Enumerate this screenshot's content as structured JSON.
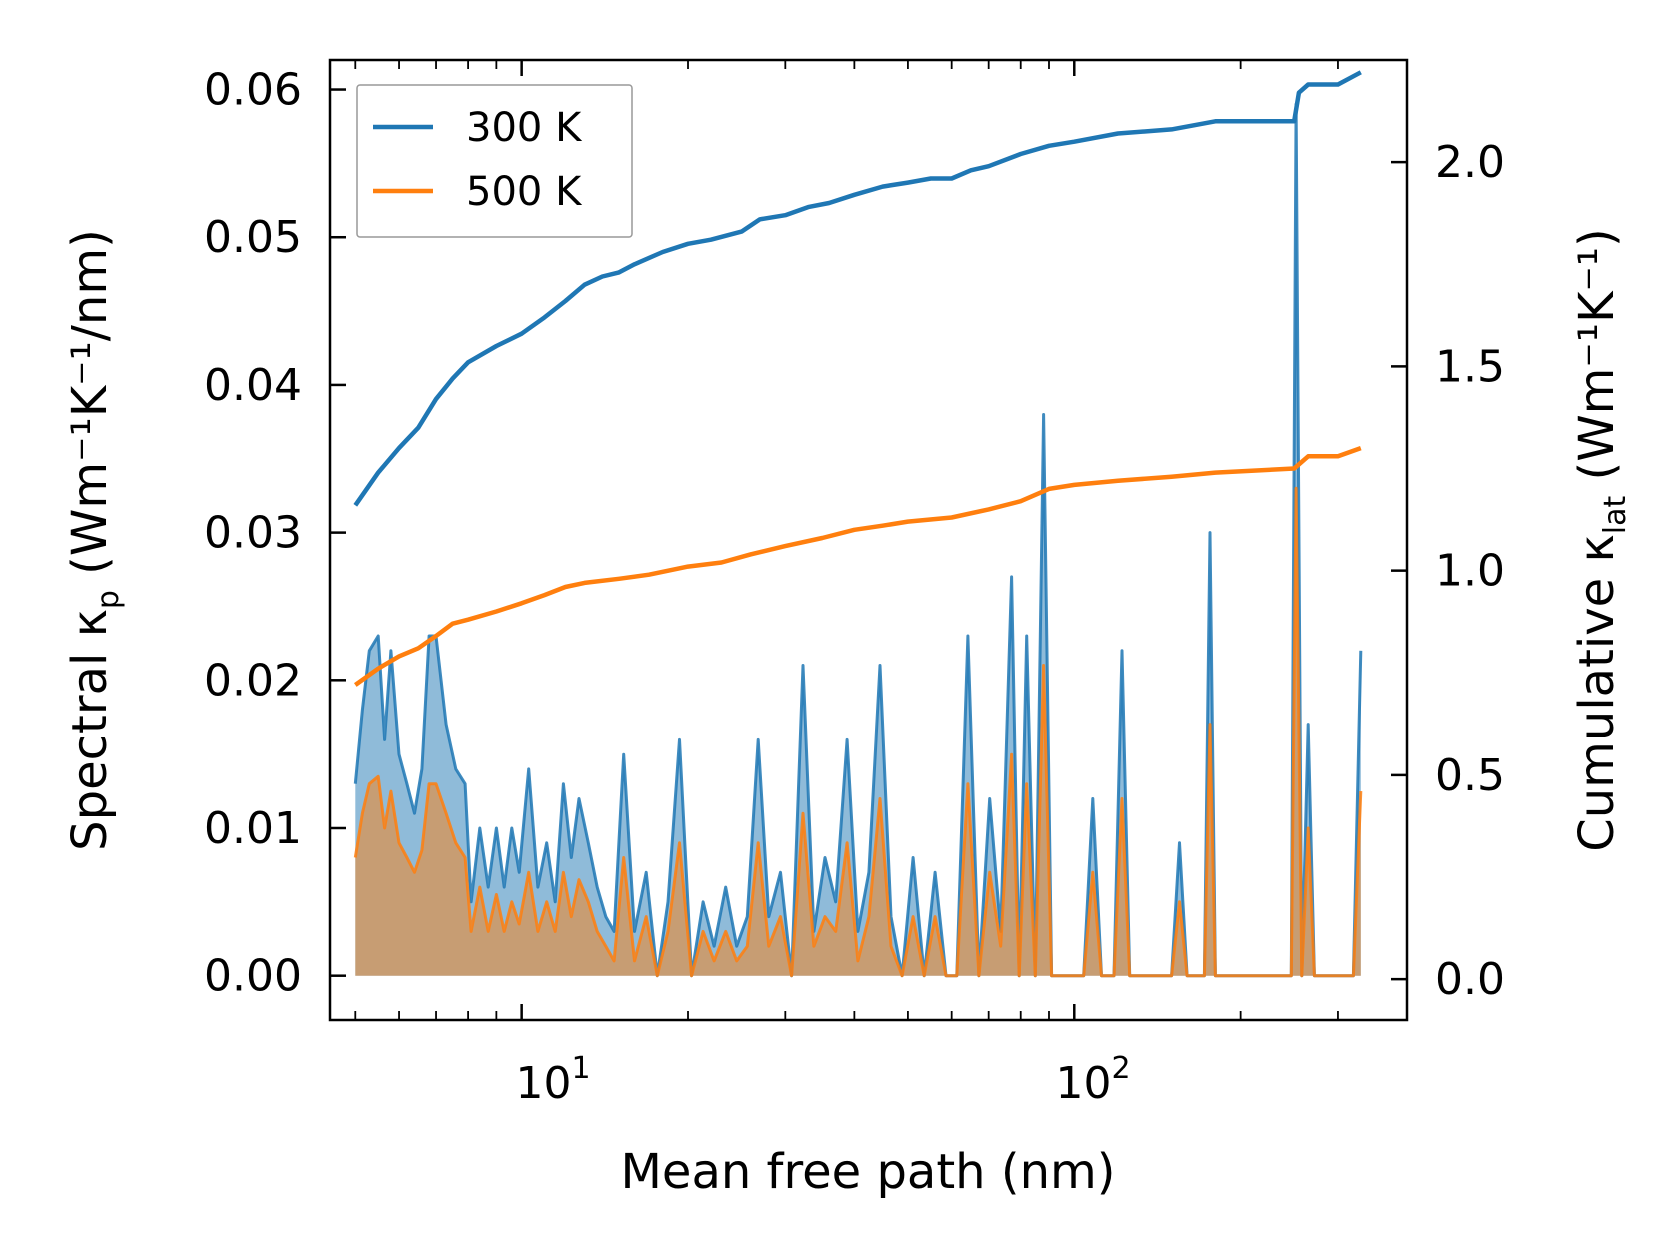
{
  "chart_data": {
    "type": "line",
    "title": "",
    "xlabel": "Mean free path (nm)",
    "ylabel_left": {
      "prefix": "Spectral κ",
      "sub": "p",
      "suffix": " (Wm⁻¹K⁻¹/nm)"
    },
    "ylabel_right": {
      "prefix": "Cumulative κ",
      "sub": "lat",
      "suffix": " (Wm⁻¹K⁻¹)"
    },
    "xscale": "log",
    "xlim": [
      4.5,
      400
    ],
    "ylim_left": [
      -0.003,
      0.062
    ],
    "ylim_right": [
      -0.1,
      2.25
    ],
    "x_ticks": [
      {
        "value": 10,
        "base": "10",
        "exp": "1"
      },
      {
        "value": 100,
        "base": "10",
        "exp": "2"
      }
    ],
    "y_ticks_left": [
      "0.00",
      "0.01",
      "0.02",
      "0.03",
      "0.04",
      "0.05",
      "0.06"
    ],
    "y_ticks_right": [
      "0.0",
      "0.5",
      "1.0",
      "1.5",
      "2.0"
    ],
    "legend": {
      "position": "top-left",
      "entries": [
        "300 K",
        "500 K"
      ]
    },
    "colors": {
      "300 K": "#1f77b4",
      "500 K": "#ff7f0e"
    },
    "spectral_series": [
      {
        "name": "300 K",
        "points": [
          [
            5.0,
            0.013
          ],
          [
            5.15,
            0.018
          ],
          [
            5.3,
            0.022
          ],
          [
            5.5,
            0.023
          ],
          [
            5.65,
            0.016
          ],
          [
            5.8,
            0.022
          ],
          [
            6.0,
            0.015
          ],
          [
            6.2,
            0.013
          ],
          [
            6.4,
            0.011
          ],
          [
            6.6,
            0.014
          ],
          [
            6.8,
            0.023
          ],
          [
            7.0,
            0.023
          ],
          [
            7.3,
            0.017
          ],
          [
            7.6,
            0.014
          ],
          [
            7.9,
            0.013
          ],
          [
            8.1,
            0.005
          ],
          [
            8.4,
            0.01
          ],
          [
            8.7,
            0.006
          ],
          [
            9.0,
            0.01
          ],
          [
            9.3,
            0.006
          ],
          [
            9.6,
            0.01
          ],
          [
            9.9,
            0.007
          ],
          [
            10.3,
            0.014
          ],
          [
            10.7,
            0.006
          ],
          [
            11.1,
            0.009
          ],
          [
            11.5,
            0.005
          ],
          [
            11.9,
            0.013
          ],
          [
            12.3,
            0.008
          ],
          [
            12.7,
            0.012
          ],
          [
            13.2,
            0.009
          ],
          [
            13.7,
            0.006
          ],
          [
            14.2,
            0.004
          ],
          [
            14.7,
            0.003
          ],
          [
            15.3,
            0.015
          ],
          [
            16.0,
            0.003
          ],
          [
            16.8,
            0.007
          ],
          [
            17.6,
            0.0
          ],
          [
            18.4,
            0.005
          ],
          [
            19.3,
            0.016
          ],
          [
            20.3,
            0.0
          ],
          [
            21.3,
            0.005
          ],
          [
            22.3,
            0.002
          ],
          [
            23.4,
            0.006
          ],
          [
            24.5,
            0.002
          ],
          [
            25.6,
            0.004
          ],
          [
            26.8,
            0.016
          ],
          [
            28.0,
            0.004
          ],
          [
            29.4,
            0.007
          ],
          [
            30.8,
            0.0
          ],
          [
            32.3,
            0.021
          ],
          [
            33.8,
            0.003
          ],
          [
            35.4,
            0.008
          ],
          [
            37.0,
            0.005
          ],
          [
            38.8,
            0.016
          ],
          [
            40.6,
            0.003
          ],
          [
            42.5,
            0.007
          ],
          [
            44.5,
            0.021
          ],
          [
            46.6,
            0.004
          ],
          [
            48.8,
            0.0
          ],
          [
            51.1,
            0.008
          ],
          [
            53.5,
            0.0
          ],
          [
            56.0,
            0.007
          ],
          [
            58.6,
            0.0
          ],
          [
            61.3,
            0.0
          ],
          [
            64.2,
            0.023
          ],
          [
            67.2,
            0.0
          ],
          [
            70.3,
            0.012
          ],
          [
            73.6,
            0.003
          ],
          [
            77.0,
            0.027
          ],
          [
            79.5,
            0.0
          ],
          [
            82.0,
            0.023
          ],
          [
            85.0,
            0.0
          ],
          [
            88.0,
            0.038
          ],
          [
            91.0,
            0.0
          ],
          [
            95.0,
            0.0
          ],
          [
            104.0,
            0.0
          ],
          [
            108.0,
            0.012
          ],
          [
            112.0,
            0.0
          ],
          [
            118.0,
            0.0
          ],
          [
            122.0,
            0.022
          ],
          [
            126.0,
            0.0
          ],
          [
            150.0,
            0.0
          ],
          [
            155.0,
            0.009
          ],
          [
            160.0,
            0.0
          ],
          [
            172.0,
            0.0
          ],
          [
            176.0,
            0.03
          ],
          [
            180.0,
            0.0
          ],
          [
            247.0,
            0.0
          ],
          [
            252.0,
            0.059
          ],
          [
            258.0,
            0.0
          ],
          [
            265.0,
            0.017
          ],
          [
            272.0,
            0.0
          ],
          [
            320.0,
            0.0
          ],
          [
            330.0,
            0.022
          ]
        ]
      },
      {
        "name": "500 K",
        "points": [
          [
            5.0,
            0.008
          ],
          [
            5.15,
            0.011
          ],
          [
            5.3,
            0.013
          ],
          [
            5.5,
            0.0135
          ],
          [
            5.65,
            0.01
          ],
          [
            5.8,
            0.0125
          ],
          [
            6.0,
            0.009
          ],
          [
            6.2,
            0.008
          ],
          [
            6.4,
            0.007
          ],
          [
            6.6,
            0.0085
          ],
          [
            6.8,
            0.013
          ],
          [
            7.0,
            0.013
          ],
          [
            7.3,
            0.011
          ],
          [
            7.6,
            0.009
          ],
          [
            7.9,
            0.008
          ],
          [
            8.1,
            0.003
          ],
          [
            8.4,
            0.006
          ],
          [
            8.7,
            0.003
          ],
          [
            9.0,
            0.0055
          ],
          [
            9.3,
            0.003
          ],
          [
            9.6,
            0.005
          ],
          [
            9.9,
            0.0035
          ],
          [
            10.3,
            0.007
          ],
          [
            10.7,
            0.003
          ],
          [
            11.1,
            0.005
          ],
          [
            11.5,
            0.003
          ],
          [
            11.9,
            0.007
          ],
          [
            12.3,
            0.004
          ],
          [
            12.7,
            0.0065
          ],
          [
            13.2,
            0.005
          ],
          [
            13.7,
            0.003
          ],
          [
            14.2,
            0.002
          ],
          [
            14.7,
            0.001
          ],
          [
            15.3,
            0.008
          ],
          [
            16.0,
            0.001
          ],
          [
            16.8,
            0.004
          ],
          [
            17.6,
            0.0
          ],
          [
            18.4,
            0.003
          ],
          [
            19.3,
            0.009
          ],
          [
            20.3,
            0.0
          ],
          [
            21.3,
            0.003
          ],
          [
            22.3,
            0.001
          ],
          [
            23.4,
            0.003
          ],
          [
            24.5,
            0.001
          ],
          [
            25.6,
            0.002
          ],
          [
            26.8,
            0.009
          ],
          [
            28.0,
            0.002
          ],
          [
            29.4,
            0.004
          ],
          [
            30.8,
            0.0
          ],
          [
            32.3,
            0.011
          ],
          [
            33.8,
            0.002
          ],
          [
            35.4,
            0.004
          ],
          [
            37.0,
            0.003
          ],
          [
            38.8,
            0.009
          ],
          [
            40.6,
            0.001
          ],
          [
            42.5,
            0.004
          ],
          [
            44.5,
            0.012
          ],
          [
            46.6,
            0.002
          ],
          [
            48.8,
            0.0
          ],
          [
            51.1,
            0.004
          ],
          [
            53.5,
            0.0
          ],
          [
            56.0,
            0.004
          ],
          [
            58.6,
            0.0
          ],
          [
            61.3,
            0.0
          ],
          [
            64.2,
            0.013
          ],
          [
            67.2,
            0.0
          ],
          [
            70.3,
            0.007
          ],
          [
            73.6,
            0.002
          ],
          [
            77.0,
            0.015
          ],
          [
            79.5,
            0.0
          ],
          [
            82.0,
            0.013
          ],
          [
            85.0,
            0.0
          ],
          [
            88.0,
            0.021
          ],
          [
            91.0,
            0.0
          ],
          [
            95.0,
            0.0
          ],
          [
            104.0,
            0.0
          ],
          [
            108.0,
            0.007
          ],
          [
            112.0,
            0.0
          ],
          [
            118.0,
            0.0
          ],
          [
            122.0,
            0.012
          ],
          [
            126.0,
            0.0
          ],
          [
            150.0,
            0.0
          ],
          [
            155.0,
            0.005
          ],
          [
            160.0,
            0.0
          ],
          [
            172.0,
            0.0
          ],
          [
            176.0,
            0.017
          ],
          [
            180.0,
            0.0
          ],
          [
            247.0,
            0.0
          ],
          [
            252.0,
            0.033
          ],
          [
            258.0,
            0.0
          ],
          [
            265.0,
            0.01
          ],
          [
            272.0,
            0.0
          ],
          [
            320.0,
            0.0
          ],
          [
            330.0,
            0.0125
          ]
        ]
      }
    ],
    "cumulative_series": [
      {
        "name": "300 K",
        "points": [
          [
            5.0,
            1.16
          ],
          [
            5.5,
            1.24
          ],
          [
            6.0,
            1.3
          ],
          [
            6.5,
            1.35
          ],
          [
            7.0,
            1.42
          ],
          [
            7.5,
            1.47
          ],
          [
            8.0,
            1.51
          ],
          [
            9.0,
            1.55
          ],
          [
            10.0,
            1.58
          ],
          [
            11.0,
            1.62
          ],
          [
            12.0,
            1.66
          ],
          [
            13.0,
            1.7
          ],
          [
            14.0,
            1.72
          ],
          [
            15.0,
            1.73
          ],
          [
            16.0,
            1.75
          ],
          [
            18.0,
            1.78
          ],
          [
            20.0,
            1.8
          ],
          [
            22.0,
            1.81
          ],
          [
            25.0,
            1.83
          ],
          [
            27.0,
            1.86
          ],
          [
            30.0,
            1.87
          ],
          [
            33.0,
            1.89
          ],
          [
            36.0,
            1.9
          ],
          [
            40.0,
            1.92
          ],
          [
            45.0,
            1.94
          ],
          [
            50.0,
            1.95
          ],
          [
            55.0,
            1.96
          ],
          [
            60.0,
            1.96
          ],
          [
            65.0,
            1.98
          ],
          [
            70.0,
            1.99
          ],
          [
            80.0,
            2.02
          ],
          [
            90.0,
            2.04
          ],
          [
            100.0,
            2.05
          ],
          [
            120.0,
            2.07
          ],
          [
            150.0,
            2.08
          ],
          [
            180.0,
            2.1
          ],
          [
            250.0,
            2.1
          ],
          [
            255.0,
            2.17
          ],
          [
            265.0,
            2.19
          ],
          [
            300.0,
            2.19
          ],
          [
            330.0,
            2.22
          ]
        ]
      },
      {
        "name": "500 K",
        "points": [
          [
            5.0,
            0.72
          ],
          [
            5.5,
            0.76
          ],
          [
            6.0,
            0.79
          ],
          [
            6.5,
            0.81
          ],
          [
            7.0,
            0.84
          ],
          [
            7.5,
            0.87
          ],
          [
            8.0,
            0.88
          ],
          [
            9.0,
            0.9
          ],
          [
            10.0,
            0.92
          ],
          [
            11.0,
            0.94
          ],
          [
            12.0,
            0.96
          ],
          [
            13.0,
            0.97
          ],
          [
            15.0,
            0.98
          ],
          [
            17.0,
            0.99
          ],
          [
            20.0,
            1.01
          ],
          [
            23.0,
            1.02
          ],
          [
            26.0,
            1.04
          ],
          [
            30.0,
            1.06
          ],
          [
            35.0,
            1.08
          ],
          [
            40.0,
            1.1
          ],
          [
            45.0,
            1.11
          ],
          [
            50.0,
            1.12
          ],
          [
            60.0,
            1.13
          ],
          [
            70.0,
            1.15
          ],
          [
            80.0,
            1.17
          ],
          [
            90.0,
            1.2
          ],
          [
            100.0,
            1.21
          ],
          [
            120.0,
            1.22
          ],
          [
            150.0,
            1.23
          ],
          [
            180.0,
            1.24
          ],
          [
            250.0,
            1.25
          ],
          [
            265.0,
            1.28
          ],
          [
            300.0,
            1.28
          ],
          [
            330.0,
            1.3
          ]
        ]
      }
    ]
  }
}
